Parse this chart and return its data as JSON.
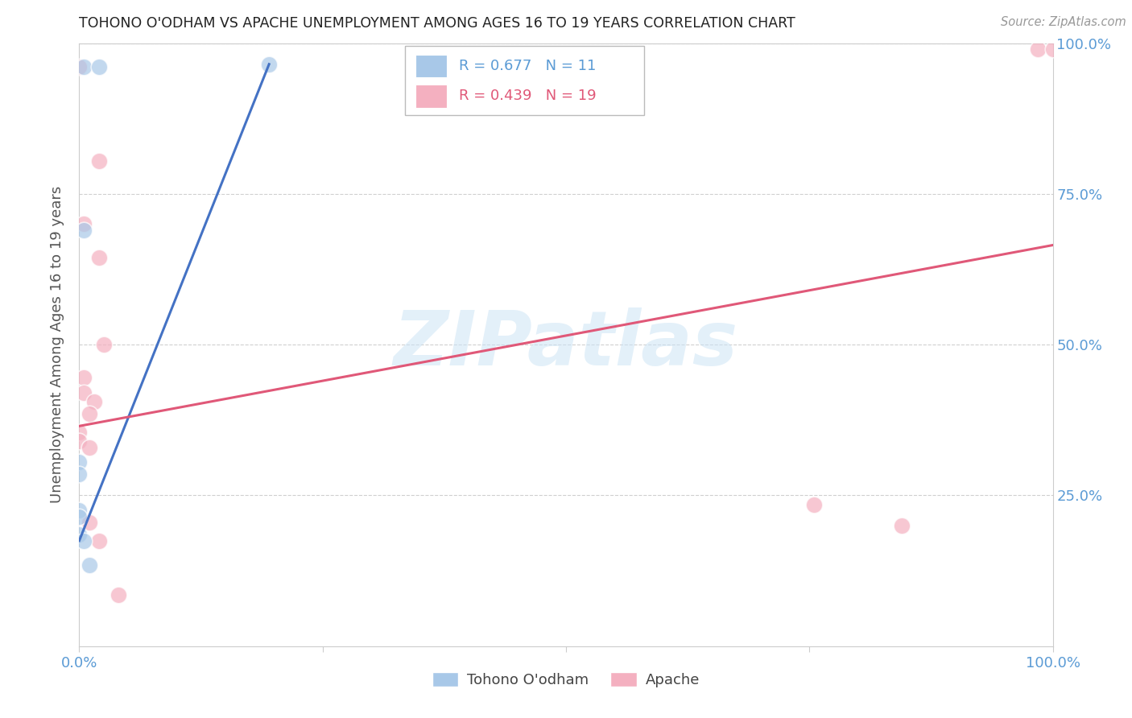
{
  "title": "TOHONO O'ODHAM VS APACHE UNEMPLOYMENT AMONG AGES 16 TO 19 YEARS CORRELATION CHART",
  "source": "Source: ZipAtlas.com",
  "ylabel": "Unemployment Among Ages 16 to 19 years",
  "xlim": [
    0,
    1.0
  ],
  "ylim": [
    0,
    1.0
  ],
  "blue_R": 0.677,
  "blue_N": 11,
  "pink_R": 0.439,
  "pink_N": 19,
  "blue_color": "#a8c8e8",
  "pink_color": "#f4b0c0",
  "blue_line_color": "#4472c4",
  "pink_line_color": "#e05878",
  "blue_scatter": [
    [
      0.005,
      0.96
    ],
    [
      0.005,
      0.69
    ],
    [
      0.02,
      0.96
    ],
    [
      0.0,
      0.305
    ],
    [
      0.0,
      0.285
    ],
    [
      0.0,
      0.225
    ],
    [
      0.0,
      0.215
    ],
    [
      0.0,
      0.185
    ],
    [
      0.005,
      0.175
    ],
    [
      0.01,
      0.135
    ],
    [
      0.195,
      0.965
    ]
  ],
  "pink_scatter": [
    [
      0.0,
      0.96
    ],
    [
      0.02,
      0.805
    ],
    [
      0.02,
      0.645
    ],
    [
      0.005,
      0.7
    ],
    [
      0.025,
      0.5
    ],
    [
      0.005,
      0.445
    ],
    [
      0.005,
      0.42
    ],
    [
      0.015,
      0.405
    ],
    [
      0.01,
      0.385
    ],
    [
      0.0,
      0.355
    ],
    [
      0.0,
      0.34
    ],
    [
      0.01,
      0.33
    ],
    [
      0.01,
      0.205
    ],
    [
      0.02,
      0.175
    ],
    [
      0.04,
      0.085
    ],
    [
      0.755,
      0.235
    ],
    [
      0.845,
      0.2
    ],
    [
      0.985,
      0.99
    ],
    [
      1.0,
      0.99
    ]
  ],
  "blue_line_x": [
    0.0,
    0.195
  ],
  "blue_line_y": [
    0.175,
    0.965
  ],
  "pink_line_x": [
    0.0,
    1.0
  ],
  "pink_line_y": [
    0.365,
    0.665
  ],
  "watermark_text": "ZIPatlas",
  "legend_blue_label": "Tohono O'odham",
  "legend_pink_label": "Apache",
  "background_color": "#ffffff",
  "grid_color": "#d0d0d0",
  "title_color": "#222222",
  "axis_label_color": "#555555",
  "tick_label_color": "#5b9bd5",
  "legend_R_color_blue": "#5b9bd5",
  "legend_R_color_pink": "#e05878",
  "legend_N_color": "#333333",
  "scatter_size": 220,
  "scatter_alpha": 0.7
}
